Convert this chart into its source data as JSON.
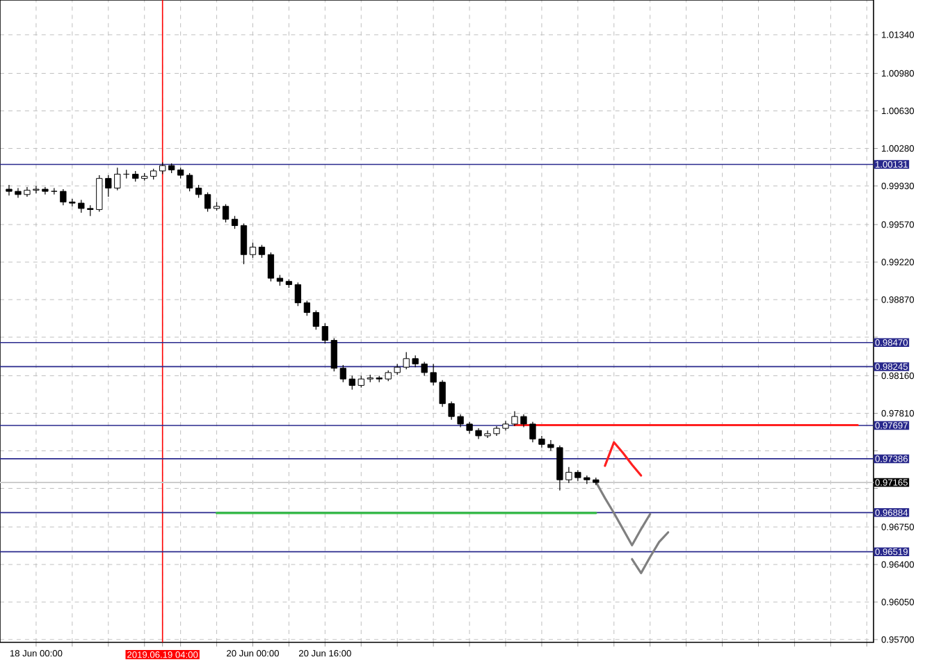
{
  "chart_data": {
    "type": "candlestick",
    "color": "#000000",
    "categories": [
      null,
      null,
      null,
      "18 Jun 00:00",
      null,
      null,
      null,
      null,
      null,
      null,
      null,
      null,
      null,
      null,
      null,
      null,
      null,
      "2019.06.19 04:00",
      null,
      null,
      null,
      null,
      null,
      null,
      null,
      null,
      null,
      "20 Jun 00:00",
      null,
      null,
      null,
      null,
      null,
      null,
      null,
      "20 Jun 16:00",
      null,
      null,
      null,
      null,
      null,
      null,
      null,
      null,
      null,
      null,
      null,
      null,
      null,
      null,
      null,
      null,
      null,
      null,
      null,
      null,
      null,
      null,
      null,
      null,
      null,
      null,
      null,
      null,
      null,
      null,
      null,
      null,
      null,
      null,
      null,
      null,
      null,
      null,
      null,
      null,
      null,
      null,
      null,
      null,
      null,
      null,
      null,
      null,
      null,
      null,
      null,
      null,
      null,
      null,
      null,
      null,
      null,
      null,
      null,
      null
    ],
    "ohlc": [
      [
        0.999,
        0.9994,
        0.9984,
        0.9988
      ],
      [
        0.9988,
        0.9991,
        0.9982,
        0.9985
      ],
      [
        0.9985,
        0.9992,
        0.9983,
        0.9989
      ],
      [
        0.9989,
        0.9993,
        0.9986,
        0.999
      ],
      [
        0.999,
        0.9992,
        0.9985,
        0.9988
      ],
      [
        0.9988,
        0.9991,
        0.9985,
        0.9988
      ],
      [
        0.9988,
        0.999,
        0.9975,
        0.9978
      ],
      [
        0.9978,
        0.9981,
        0.9974,
        0.9977
      ],
      [
        0.9977,
        0.998,
        0.9968,
        0.9972
      ],
      [
        0.9972,
        0.9975,
        0.9965,
        0.9971
      ],
      [
        0.9971,
        1.0003,
        0.9969,
        1.0
      ],
      [
        1.0,
        1.0003,
        0.9983,
        0.9991
      ],
      [
        0.9991,
        1.001,
        0.9989,
        1.0004
      ],
      [
        1.0004,
        1.0008,
        1.0,
        1.0004
      ],
      [
        1.0004,
        1.0007,
        0.9997,
        1.0
      ],
      [
        1.0,
        1.0005,
        0.9998,
        1.0002
      ],
      [
        1.0002,
        1.0009,
        0.9999,
        1.0007
      ],
      [
        1.0007,
        1.0015,
        1.0004,
        1.0012
      ],
      [
        1.0012,
        1.0014,
        1.0005,
        1.0008
      ],
      [
        1.0008,
        1.001,
        1.0,
        1.0003
      ],
      [
        1.0003,
        1.0005,
        0.9988,
        0.9991
      ],
      [
        0.9991,
        0.9994,
        0.9982,
        0.9985
      ],
      [
        0.9985,
        0.9987,
        0.9969,
        0.9972
      ],
      [
        0.9972,
        0.9978,
        0.997,
        0.9974
      ],
      [
        0.9974,
        0.9976,
        0.9959,
        0.9962
      ],
      [
        0.9962,
        0.9965,
        0.9953,
        0.9956
      ],
      [
        0.9956,
        0.9958,
        0.992,
        0.9929
      ],
      [
        0.9929,
        0.994,
        0.9926,
        0.9936
      ],
      [
        0.9936,
        0.9938,
        0.9926,
        0.9929
      ],
      [
        0.9929,
        0.9931,
        0.9904,
        0.9907
      ],
      [
        0.9907,
        0.991,
        0.99,
        0.9904
      ],
      [
        0.9904,
        0.9906,
        0.9898,
        0.9901
      ],
      [
        0.9901,
        0.9903,
        0.9881,
        0.9884
      ],
      [
        0.9884,
        0.9886,
        0.9872,
        0.9875
      ],
      [
        0.9875,
        0.9877,
        0.9859,
        0.9862
      ],
      [
        0.9862,
        0.9865,
        0.9846,
        0.9849
      ],
      [
        0.9849,
        0.9851,
        0.982,
        0.9823
      ],
      [
        0.9823,
        0.9826,
        0.981,
        0.9813
      ],
      [
        0.9813,
        0.9816,
        0.9803,
        0.9807
      ],
      [
        0.9807,
        0.9816,
        0.9805,
        0.9813
      ],
      [
        0.9813,
        0.9817,
        0.981,
        0.9814
      ],
      [
        0.9814,
        0.9816,
        0.981,
        0.9813
      ],
      [
        0.9813,
        0.9821,
        0.9811,
        0.9819
      ],
      [
        0.9819,
        0.9827,
        0.9817,
        0.9824
      ],
      [
        0.9824,
        0.9838,
        0.9822,
        0.9832
      ],
      [
        0.9832,
        0.9835,
        0.9824,
        0.9827
      ],
      [
        0.9827,
        0.9829,
        0.9816,
        0.9819
      ],
      [
        0.9819,
        0.9827,
        0.9807,
        0.981
      ],
      [
        0.981,
        0.9812,
        0.9787,
        0.979
      ],
      [
        0.979,
        0.9792,
        0.9775,
        0.9778
      ],
      [
        0.9778,
        0.978,
        0.9768,
        0.9771
      ],
      [
        0.9771,
        0.9773,
        0.9762,
        0.9765
      ],
      [
        0.9765,
        0.9767,
        0.9757,
        0.976
      ],
      [
        0.976,
        0.9765,
        0.9758,
        0.9762
      ],
      [
        0.9762,
        0.9769,
        0.976,
        0.9767
      ],
      [
        0.9767,
        0.9774,
        0.9765,
        0.9771
      ],
      [
        0.9771,
        0.9783,
        0.9769,
        0.9778
      ],
      [
        0.9778,
        0.978,
        0.9768,
        0.9771
      ],
      [
        0.9771,
        0.9773,
        0.9754,
        0.9757
      ],
      [
        0.9757,
        0.976,
        0.9749,
        0.9752
      ],
      [
        0.9752,
        0.9756,
        0.9746,
        0.9749
      ],
      [
        0.9749,
        0.9751,
        0.9709,
        0.9719
      ],
      [
        0.9719,
        0.9731,
        0.9716,
        0.9726
      ],
      [
        0.9726,
        0.9728,
        0.9718,
        0.9721
      ],
      [
        0.9721,
        0.9723,
        0.9715,
        0.9719
      ],
      [
        0.9719,
        0.9721,
        0.9714,
        0.97165
      ],
      null,
      null,
      null,
      null,
      null,
      null,
      null,
      null,
      null,
      null,
      null,
      null,
      null,
      null,
      null,
      null,
      null,
      null,
      null,
      null,
      null,
      null,
      null,
      null,
      null,
      null,
      null,
      null,
      null,
      null
    ],
    "series": [
      {
        "type": "line",
        "color": "#ff2020",
        "values": [
          null,
          null,
          null,
          null,
          null,
          null,
          null,
          null,
          null,
          null,
          null,
          null,
          null,
          null,
          null,
          null,
          null,
          null,
          null,
          null,
          null,
          null,
          null,
          null,
          null,
          null,
          null,
          null,
          null,
          null,
          null,
          null,
          null,
          null,
          null,
          null,
          null,
          null,
          null,
          null,
          null,
          null,
          null,
          null,
          null,
          null,
          null,
          null,
          null,
          null,
          null,
          null,
          null,
          null,
          null,
          null,
          0.977,
          0.977,
          0.977,
          0.977,
          0.977,
          0.977,
          0.977,
          0.977,
          0.977,
          0.977,
          0.977,
          0.977,
          0.977,
          0.977,
          0.977,
          0.977,
          0.977,
          0.977,
          0.977,
          0.977,
          0.977,
          0.977,
          0.977,
          0.977,
          0.977,
          0.977,
          0.977,
          0.977,
          0.977,
          0.977,
          0.977,
          0.977,
          0.977,
          0.977,
          0.977,
          0.977,
          0.977,
          0.977,
          0.977,
          null
        ]
      },
      {
        "type": "line",
        "color": "#33bb44",
        "values": [
          null,
          null,
          null,
          null,
          null,
          null,
          null,
          null,
          null,
          null,
          null,
          null,
          null,
          null,
          null,
          null,
          null,
          null,
          null,
          null,
          null,
          null,
          null,
          0.9688,
          0.9688,
          0.9688,
          0.9688,
          0.9688,
          0.9688,
          0.9688,
          0.9688,
          0.9688,
          0.9688,
          0.9688,
          0.9688,
          0.9688,
          0.9688,
          0.9688,
          0.9688,
          0.9688,
          0.9688,
          0.9688,
          0.9688,
          0.9688,
          0.9688,
          0.9688,
          0.9688,
          0.9688,
          0.9688,
          0.9688,
          0.9688,
          0.9688,
          0.9688,
          0.9688,
          0.9688,
          0.9688,
          0.9688,
          0.9688,
          0.9688,
          0.9688,
          0.9688,
          0.9688,
          0.9688,
          0.9688,
          0.9688,
          0.9688,
          null,
          null,
          null,
          null,
          null,
          null,
          null,
          null,
          null,
          null,
          null,
          null,
          null,
          null,
          null,
          null,
          null,
          null,
          null,
          null,
          null,
          null,
          null,
          null,
          null,
          null,
          null,
          null,
          null,
          null
        ]
      },
      {
        "type": "line",
        "color": "#808080",
        "values": [
          null,
          null,
          null,
          null,
          null,
          null,
          null,
          null,
          null,
          null,
          null,
          null,
          null,
          null,
          null,
          null,
          null,
          null,
          null,
          null,
          null,
          null,
          null,
          null,
          null,
          null,
          null,
          null,
          null,
          null,
          null,
          null,
          null,
          null,
          null,
          null,
          null,
          null,
          null,
          null,
          null,
          null,
          null,
          null,
          null,
          null,
          null,
          null,
          null,
          null,
          null,
          null,
          null,
          null,
          null,
          null,
          null,
          null,
          null,
          null,
          null,
          null,
          null,
          null,
          null,
          0.9717,
          0.9702,
          0.9688,
          0.9673,
          0.9658,
          0.9673,
          0.9687,
          null,
          null,
          null,
          null,
          null,
          null,
          null,
          null,
          null,
          null,
          null,
          null,
          null,
          null,
          null,
          null,
          null,
          null,
          null,
          null,
          null,
          null,
          null,
          null
        ]
      },
      {
        "type": "line",
        "color": "#808080",
        "values": [
          null,
          null,
          null,
          null,
          null,
          null,
          null,
          null,
          null,
          null,
          null,
          null,
          null,
          null,
          null,
          null,
          null,
          null,
          null,
          null,
          null,
          null,
          null,
          null,
          null,
          null,
          null,
          null,
          null,
          null,
          null,
          null,
          null,
          null,
          null,
          null,
          null,
          null,
          null,
          null,
          null,
          null,
          null,
          null,
          null,
          null,
          null,
          null,
          null,
          null,
          null,
          null,
          null,
          null,
          null,
          null,
          null,
          null,
          null,
          null,
          null,
          null,
          null,
          null,
          null,
          null,
          null,
          null,
          null,
          0.9645,
          0.9632,
          0.9647,
          0.9661,
          0.967,
          null,
          null,
          null,
          null,
          null,
          null,
          null,
          null,
          null,
          null,
          null,
          null,
          null,
          null,
          null,
          null,
          null,
          null,
          null,
          null,
          null,
          null
        ]
      },
      {
        "type": "line",
        "color": "#ff2020",
        "values": [
          null,
          null,
          null,
          null,
          null,
          null,
          null,
          null,
          null,
          null,
          null,
          null,
          null,
          null,
          null,
          null,
          null,
          null,
          null,
          null,
          null,
          null,
          null,
          null,
          null,
          null,
          null,
          null,
          null,
          null,
          null,
          null,
          null,
          null,
          null,
          null,
          null,
          null,
          null,
          null,
          null,
          null,
          null,
          null,
          null,
          null,
          null,
          null,
          null,
          null,
          null,
          null,
          null,
          null,
          null,
          null,
          null,
          null,
          null,
          null,
          null,
          null,
          null,
          null,
          null,
          null,
          0.9732,
          0.9754,
          0.9744,
          0.9733,
          0.9723,
          null,
          null,
          null,
          null,
          null,
          null,
          null,
          null,
          null,
          null,
          null,
          null,
          null,
          null,
          null,
          null,
          null,
          null,
          null,
          null,
          null,
          null,
          null,
          null,
          null
        ]
      }
    ],
    "ylim": [
      0.95674,
      1.01664
    ],
    "yticks": [
      {
        "value": 1.0134,
        "label": "1.01340"
      },
      {
        "value": 1.0098,
        "label": "1.00980"
      },
      {
        "value": 1.0063,
        "label": "1.00630"
      },
      {
        "value": 1.0028,
        "label": "1.00280"
      },
      {
        "value": 0.9993,
        "label": "0.99930"
      },
      {
        "value": 0.9957,
        "label": "0.99570"
      },
      {
        "value": 0.9922,
        "label": "0.99220"
      },
      {
        "value": 0.9887,
        "label": "0.98870"
      },
      {
        "value": 0.9852,
        "label": null
      },
      {
        "value": 0.9816,
        "label": "0.98160"
      },
      {
        "value": 0.9781,
        "label": "0.97810"
      },
      {
        "value": 0.9746,
        "label": null
      },
      {
        "value": 0.9711,
        "label": null
      },
      {
        "value": 0.9675,
        "label": "0.96750"
      },
      {
        "value": 0.964,
        "label": "0.96400"
      },
      {
        "value": 0.9605,
        "label": "0.96050"
      },
      {
        "value": 0.957,
        "label": "0.95700"
      }
    ],
    "grid": true,
    "ref_lines": [
      {
        "axis": "x",
        "value": "2019.06.19 04:00",
        "color": "#ff0000"
      },
      {
        "axis": "y",
        "value": 1.00131,
        "label": "1.00131",
        "color": "#28288c"
      },
      {
        "axis": "y",
        "value": 0.9847,
        "label": "0.98470",
        "color": "#28288c"
      },
      {
        "axis": "y",
        "value": 0.98245,
        "label": "0.98245",
        "color": "#28288c"
      },
      {
        "axis": "y",
        "value": 0.97697,
        "label": "0.97697",
        "color": "#28288c"
      },
      {
        "axis": "y",
        "value": 0.97386,
        "label": "0.97386",
        "color": "#28288c"
      },
      {
        "axis": "y",
        "value": 0.97165,
        "label": "0.97165"
      },
      {
        "axis": "y",
        "value": 0.96884,
        "label": "0.96884",
        "color": "#28288c"
      },
      {
        "axis": "y",
        "value": 0.96519,
        "label": "0.96519",
        "color": "#28288c"
      }
    ]
  }
}
